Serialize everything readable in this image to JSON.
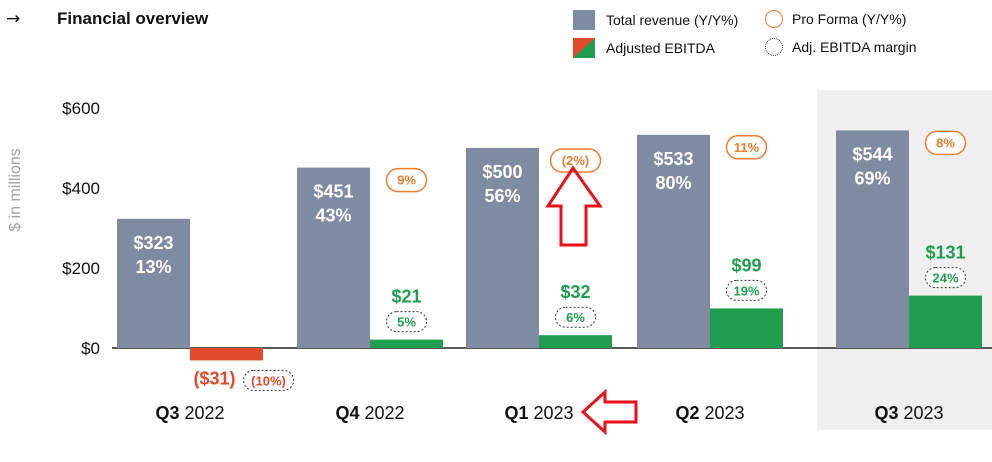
{
  "header": {
    "arrow_icon": "→",
    "title": "Financial overview"
  },
  "legend": {
    "total_revenue": "Total revenue (Y/Y%)",
    "pro_forma": "Pro Forma (Y/Y%)",
    "adjusted_ebitda": "Adjusted EBITDA",
    "ebitda_margin": "Adj. EBITDA margin"
  },
  "colors": {
    "revenue": "#7f8ba0",
    "ebitda_pos": "#1f9e4f",
    "ebitda_neg": "#e14a2a",
    "pro_forma": "#f07b2e",
    "highlight_bg": "#efefef",
    "annotation": "#e8101a"
  },
  "chart_data": {
    "type": "bar",
    "ylabel": "$ in millions",
    "ylim": [
      -40,
      600
    ],
    "yticks": [
      0,
      200,
      400,
      600
    ],
    "ytick_labels": [
      "$0",
      "$200",
      "$400",
      "$600"
    ],
    "highlighted_category": "Q3 2023",
    "categories": [
      {
        "bold": "Q3",
        "rest": " 2022"
      },
      {
        "bold": "Q4",
        "rest": " 2022"
      },
      {
        "bold": "Q1",
        "rest": " 2023"
      },
      {
        "bold": "Q2",
        "rest": " 2023"
      },
      {
        "bold": "Q3",
        "rest": " 2023"
      }
    ],
    "series": [
      {
        "name": "Total revenue",
        "values": [
          323,
          451,
          500,
          533,
          544
        ],
        "labels": [
          "$323",
          "$451",
          "$500",
          "$533",
          "$544"
        ],
        "yoy": [
          "13%",
          "43%",
          "56%",
          "80%",
          "69%"
        ]
      },
      {
        "name": "Adjusted EBITDA",
        "values": [
          -31,
          21,
          32,
          99,
          131
        ],
        "labels": [
          "($31)",
          "$21",
          "$32",
          "$99",
          "$131"
        ],
        "margin": [
          "(10%)",
          "5%",
          "6%",
          "19%",
          "24%"
        ]
      }
    ],
    "pro_forma": [
      "",
      "9%",
      "(2%)",
      "11%",
      "8%"
    ]
  }
}
